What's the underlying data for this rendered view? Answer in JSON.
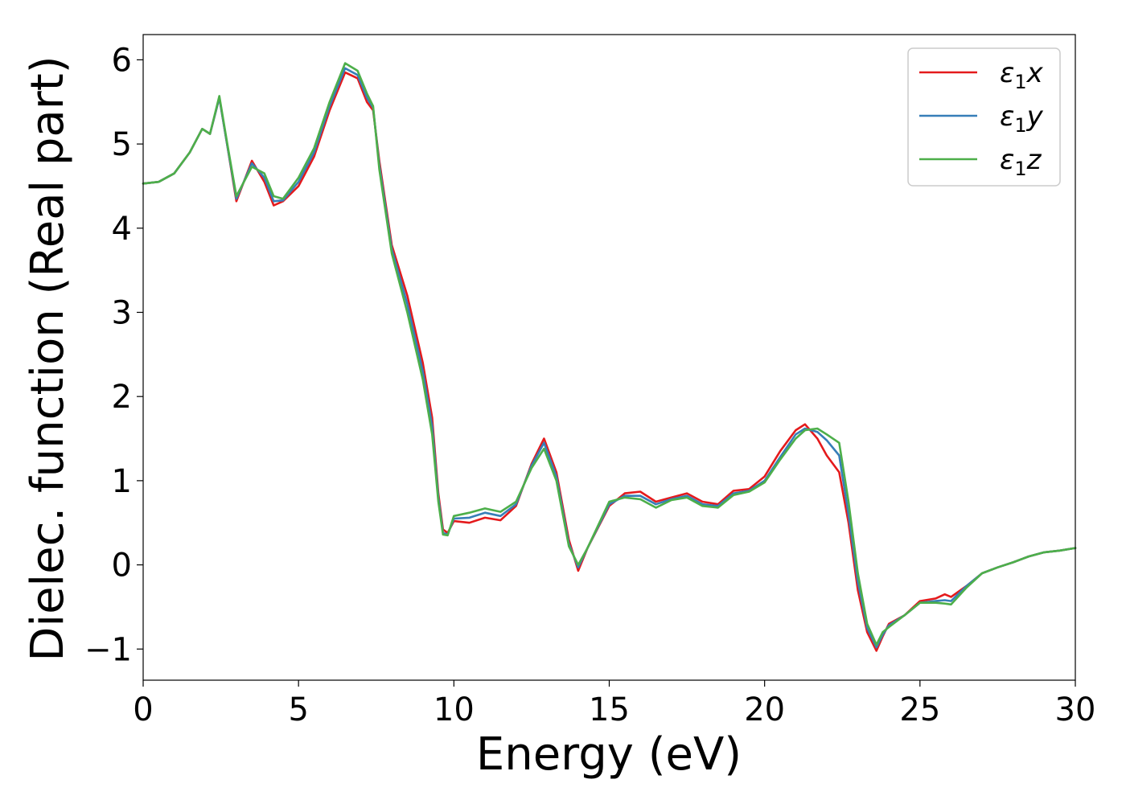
{
  "chart_data": {
    "type": "line",
    "xlabel": "Energy (eV)",
    "ylabel": "Dielec. function (Real part)",
    "xlim": [
      0,
      30
    ],
    "ylim": [
      -1.37,
      6.3
    ],
    "xticks": [
      0,
      5,
      10,
      15,
      20,
      25,
      30
    ],
    "xtick_labels": [
      "0",
      "5",
      "10",
      "15",
      "20",
      "25",
      "30"
    ],
    "yticks": [
      -1,
      0,
      1,
      2,
      3,
      4,
      5,
      6
    ],
    "ytick_labels": [
      "−1",
      "0",
      "1",
      "2",
      "3",
      "4",
      "5",
      "6"
    ],
    "grid": false,
    "legend_position": "top-right",
    "series": [
      {
        "name": "ε1x",
        "legend_base": "ε",
        "legend_sub": "1",
        "legend_var": "x",
        "color": "#e41a1c",
        "x": [
          0,
          0.5,
          1.0,
          1.5,
          1.9,
          2.15,
          2.45,
          2.7,
          3.0,
          3.5,
          3.9,
          4.2,
          4.5,
          5.0,
          5.5,
          6.0,
          6.5,
          6.9,
          7.2,
          7.4,
          7.6,
          8.0,
          8.5,
          9.0,
          9.3,
          9.5,
          9.65,
          9.8,
          10.0,
          10.5,
          11.0,
          11.5,
          12.0,
          12.5,
          12.9,
          13.3,
          13.7,
          14.0,
          14.3,
          15.0,
          15.5,
          16.0,
          16.5,
          17.0,
          17.5,
          18.0,
          18.5,
          19.0,
          19.5,
          20.0,
          20.5,
          21.0,
          21.3,
          21.7,
          22.0,
          22.4,
          22.7,
          23.0,
          23.3,
          23.6,
          23.8,
          24.0,
          24.5,
          25.0,
          25.5,
          25.8,
          26.0,
          26.5,
          27.0,
          27.5,
          28.0,
          28.5,
          29.0,
          29.5,
          30.0
        ],
        "y": [
          4.53,
          4.55,
          4.65,
          4.9,
          5.18,
          5.12,
          5.55,
          5.0,
          4.32,
          4.8,
          4.55,
          4.27,
          4.32,
          4.5,
          4.85,
          5.4,
          5.85,
          5.78,
          5.5,
          5.4,
          4.8,
          3.8,
          3.2,
          2.4,
          1.75,
          0.85,
          0.42,
          0.38,
          0.52,
          0.5,
          0.56,
          0.53,
          0.7,
          1.2,
          1.5,
          1.1,
          0.3,
          -0.07,
          0.2,
          0.7,
          0.85,
          0.87,
          0.75,
          0.8,
          0.85,
          0.75,
          0.72,
          0.88,
          0.9,
          1.05,
          1.35,
          1.6,
          1.67,
          1.5,
          1.3,
          1.1,
          0.5,
          -0.3,
          -0.8,
          -1.02,
          -0.85,
          -0.7,
          -0.6,
          -0.43,
          -0.4,
          -0.35,
          -0.38,
          -0.25,
          -0.1,
          -0.03,
          0.03,
          0.1,
          0.15,
          0.17,
          0.2
        ]
      },
      {
        "name": "ε1y",
        "legend_base": "ε",
        "legend_sub": "1",
        "legend_var": "y",
        "color": "#377eb8",
        "x": [
          0,
          0.5,
          1.0,
          1.5,
          1.9,
          2.15,
          2.45,
          2.7,
          3.0,
          3.5,
          3.9,
          4.2,
          4.5,
          5.0,
          5.5,
          6.0,
          6.5,
          6.9,
          7.2,
          7.4,
          7.6,
          8.0,
          8.5,
          9.0,
          9.3,
          9.5,
          9.65,
          9.8,
          10.0,
          10.5,
          11.0,
          11.5,
          12.0,
          12.5,
          12.9,
          13.3,
          13.7,
          14.0,
          14.3,
          15.0,
          15.5,
          16.0,
          16.5,
          17.0,
          17.5,
          18.0,
          18.5,
          19.0,
          19.5,
          20.0,
          20.5,
          21.0,
          21.3,
          21.7,
          22.0,
          22.4,
          22.7,
          23.0,
          23.3,
          23.6,
          23.8,
          24.0,
          24.5,
          25.0,
          25.5,
          25.8,
          26.0,
          26.5,
          27.0,
          27.5,
          28.0,
          28.5,
          29.0,
          29.5,
          30.0
        ],
        "y": [
          4.53,
          4.55,
          4.65,
          4.9,
          5.18,
          5.12,
          5.55,
          5.0,
          4.35,
          4.77,
          4.6,
          4.32,
          4.33,
          4.55,
          4.9,
          5.45,
          5.9,
          5.82,
          5.55,
          5.43,
          4.75,
          3.75,
          3.1,
          2.3,
          1.65,
          0.8,
          0.38,
          0.36,
          0.55,
          0.56,
          0.62,
          0.58,
          0.72,
          1.18,
          1.45,
          1.05,
          0.25,
          -0.03,
          0.2,
          0.72,
          0.82,
          0.82,
          0.72,
          0.78,
          0.82,
          0.72,
          0.7,
          0.85,
          0.88,
          1.0,
          1.28,
          1.55,
          1.62,
          1.58,
          1.48,
          1.3,
          0.6,
          -0.2,
          -0.75,
          -0.98,
          -0.83,
          -0.72,
          -0.6,
          -0.45,
          -0.43,
          -0.42,
          -0.43,
          -0.25,
          -0.1,
          -0.03,
          0.03,
          0.1,
          0.15,
          0.17,
          0.2
        ]
      },
      {
        "name": "ε1z",
        "legend_base": "ε",
        "legend_sub": "1",
        "legend_var": "z",
        "color": "#4daf4a",
        "x": [
          0,
          0.5,
          1.0,
          1.5,
          1.9,
          2.15,
          2.45,
          2.7,
          3.0,
          3.5,
          3.9,
          4.2,
          4.5,
          5.0,
          5.5,
          6.0,
          6.5,
          6.9,
          7.2,
          7.4,
          7.6,
          8.0,
          8.5,
          9.0,
          9.3,
          9.5,
          9.65,
          9.8,
          10.0,
          10.5,
          11.0,
          11.5,
          12.0,
          12.5,
          12.9,
          13.3,
          13.7,
          14.0,
          14.3,
          15.0,
          15.5,
          16.0,
          16.5,
          17.0,
          17.5,
          18.0,
          18.5,
          19.0,
          19.5,
          20.0,
          20.5,
          21.0,
          21.3,
          21.7,
          22.0,
          22.4,
          22.7,
          23.0,
          23.3,
          23.6,
          23.8,
          24.0,
          24.5,
          25.0,
          25.5,
          25.8,
          26.0,
          26.5,
          27.0,
          27.5,
          28.0,
          28.5,
          29.0,
          29.5,
          30.0
        ],
        "y": [
          4.53,
          4.55,
          4.65,
          4.9,
          5.18,
          5.12,
          5.57,
          5.02,
          4.38,
          4.73,
          4.65,
          4.38,
          4.35,
          4.6,
          4.95,
          5.5,
          5.96,
          5.87,
          5.6,
          5.45,
          4.7,
          3.7,
          3.0,
          2.2,
          1.55,
          0.75,
          0.36,
          0.35,
          0.58,
          0.62,
          0.67,
          0.63,
          0.75,
          1.15,
          1.38,
          1.0,
          0.22,
          0.0,
          0.2,
          0.75,
          0.8,
          0.78,
          0.68,
          0.77,
          0.8,
          0.7,
          0.68,
          0.83,
          0.87,
          0.98,
          1.25,
          1.5,
          1.6,
          1.62,
          1.55,
          1.45,
          0.75,
          -0.1,
          -0.7,
          -0.95,
          -0.8,
          -0.74,
          -0.6,
          -0.45,
          -0.45,
          -0.46,
          -0.47,
          -0.27,
          -0.1,
          -0.03,
          0.03,
          0.1,
          0.15,
          0.17,
          0.2
        ]
      }
    ]
  }
}
